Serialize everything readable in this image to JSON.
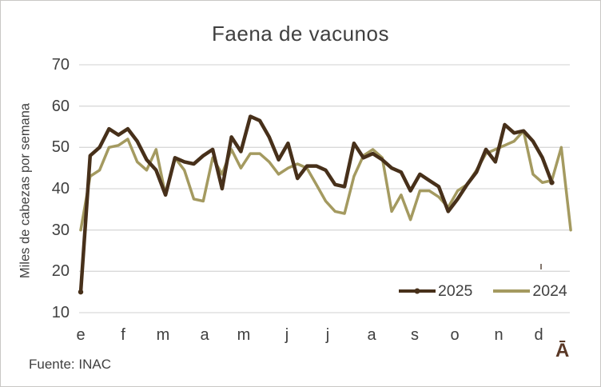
{
  "title": "Faena de vacunos",
  "source": "Fuente: INAC",
  "watermark": "Ā",
  "y_axis": {
    "label": "Miles de cabezas por semana",
    "ticks": [
      70,
      60,
      50,
      40,
      30,
      20,
      10
    ]
  },
  "x_axis": {
    "labels": [
      "e",
      "f",
      "m",
      "a",
      "m",
      "j",
      "j",
      "a",
      "s",
      "o",
      "n",
      "d"
    ]
  },
  "legend": [
    {
      "label": "2025",
      "color": "#47301a"
    },
    {
      "label": "2024",
      "color": "#a49a60"
    }
  ],
  "colors": {
    "text": "#404040",
    "gridline": "#d9d9d9",
    "series_2025": "#47301a",
    "series_2024": "#a49a60",
    "watermark": "#5a3826"
  },
  "chart_data": {
    "type": "line",
    "title": "Faena de vacunos",
    "xlabel": "",
    "ylabel": "Miles de cabezas por semana",
    "x_unit": "semana (weekly points, Jan-Dec)",
    "ylim": [
      10,
      70
    ],
    "grid": "horizontal",
    "legend_position": "inside-bottom-right",
    "categories_months": [
      "e",
      "f",
      "m",
      "a",
      "m",
      "j",
      "j",
      "a",
      "s",
      "o",
      "n",
      "d"
    ],
    "series": [
      {
        "name": "2025",
        "color": "#47301a",
        "end_markers": true,
        "values": [
          15,
          48,
          50,
          54.5,
          53,
          54.5,
          51.5,
          47,
          44.5,
          38.5,
          47.5,
          46.5,
          46,
          48,
          49.5,
          40,
          52.5,
          49,
          57.5,
          56.5,
          52.5,
          47,
          51,
          42.5,
          45.5,
          45.5,
          44.5,
          41,
          40.5,
          51,
          47.5,
          48.5,
          47,
          45,
          44,
          39.5,
          43.5,
          42,
          40.5,
          34.5,
          37.5,
          41,
          44,
          49.5,
          46.5,
          55.5,
          53.5,
          54,
          51.5,
          47.5,
          41.5
        ]
      },
      {
        "name": "2024",
        "color": "#a49a60",
        "end_markers": false,
        "values": [
          30,
          43,
          44.5,
          50,
          50.5,
          52,
          46.5,
          44.5,
          49.5,
          38.5,
          47.5,
          44.5,
          37.5,
          37,
          47.5,
          43.5,
          49.5,
          45,
          48.5,
          48.5,
          46.5,
          43.5,
          45,
          46,
          45,
          41,
          37,
          34.5,
          34,
          43,
          48,
          49.5,
          47.5,
          34.5,
          38.5,
          32.5,
          39.5,
          39.5,
          38,
          35.5,
          39.5,
          41,
          44.5,
          48.5,
          49.5,
          50.5,
          51.5,
          54,
          43.5,
          41.5,
          42,
          50,
          30
        ]
      }
    ]
  }
}
